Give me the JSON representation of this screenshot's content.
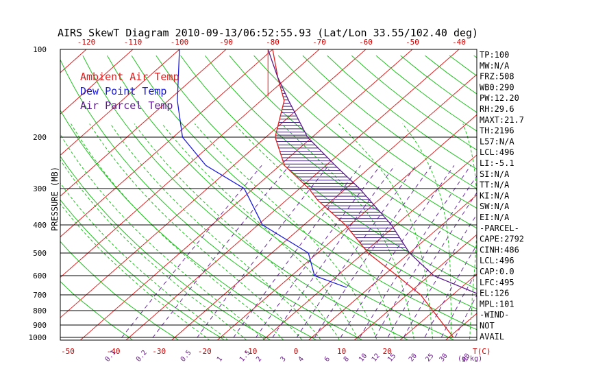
{
  "title": "AIRS SkewT Diagram 2010-09-13/06:52:55.93 (Lat/Lon 33.55/102.40 deg)",
  "legend": [
    {
      "label": "Ambient Air Temp",
      "color": "#e02020"
    },
    {
      "label": "Dew Point Temp",
      "color": "#1a1ad8"
    },
    {
      "label": "Air Parcel Temp",
      "color": "#5a1a8a"
    }
  ],
  "colors": {
    "isotherm": "#e02020",
    "dry_adiabat": "#20c020",
    "moist_adiabat": "#20c020",
    "mixing_ratio": "#6a2aa0",
    "isobar": "#000000",
    "hatch": "#3a1a7a"
  },
  "stats": [
    "TP:100",
    "MW:N/A",
    "FRZ:508",
    "WB0:290",
    "PW:12.20",
    "RH:29.6",
    "MAXT:21.7",
    "TH:2196",
    "L57:N/A",
    "LCL:496",
    "LI:-5.1",
    "SI:N/A",
    "TT:N/A",
    "KI:N/A",
    "SW:N/A",
    "EI:N/A",
    "-PARCEL-",
    "CAPE:2792",
    "CINH:486",
    "LCL:496",
    "CAP:0.0",
    "LFC:495",
    "EL:126",
    "MPL:101",
    "-WIND-",
    "NOT",
    "AVAIL"
  ],
  "chart_data": {
    "type": "line",
    "title": "AIRS SkewT Diagram 2010-09-13/06:52:55.93 (Lat/Lon 33.55/102.40 deg)",
    "ylabel": "PRESSURE (MB)",
    "xlabel": "T(C)",
    "pressure_ticks": [
      "100",
      "200",
      "300",
      "400",
      "500",
      "600",
      "700",
      "800",
      "900",
      "1000"
    ],
    "top_temp_ticks": [
      "-120",
      "-110",
      "-100",
      "-90",
      "-80",
      "-70",
      "-60",
      "-50",
      "-40"
    ],
    "bottom_temp_ticks": [
      "-50",
      "-40",
      "-30",
      "-20",
      "-10",
      "0",
      "10",
      "20"
    ],
    "bottom_temp_label": "T(C)",
    "mixing_ratio_labels": [
      "0.1",
      "0.2",
      "0.5",
      "1",
      "1.5",
      "2",
      "3",
      "4",
      "6",
      "8",
      "10",
      "12",
      "15",
      "20",
      "25",
      "30",
      "40"
    ],
    "mixing_ratio_unit": "(g/kg)",
    "series": [
      {
        "name": "Ambient Air Temp",
        "points": [
          {
            "p": 1000,
            "t": 31
          },
          {
            "p": 700,
            "t": 13
          },
          {
            "p": 600,
            "t": 3
          },
          {
            "p": 500,
            "t": -9
          },
          {
            "p": 400,
            "t": -21
          },
          {
            "p": 330,
            "t": -33
          },
          {
            "p": 300,
            "t": -38
          },
          {
            "p": 250,
            "t": -49
          },
          {
            "p": 200,
            "t": -58
          },
          {
            "p": 150,
            "t": -65
          },
          {
            "p": 125,
            "t": -72
          },
          {
            "p": 100,
            "t": -80
          }
        ]
      },
      {
        "name": "Dew Point Temp",
        "points": [
          {
            "p": 660,
            "t": -5
          },
          {
            "p": 600,
            "t": -15
          },
          {
            "p": 500,
            "t": -22
          },
          {
            "p": 400,
            "t": -39
          },
          {
            "p": 300,
            "t": -52
          },
          {
            "p": 250,
            "t": -66
          },
          {
            "p": 200,
            "t": -78
          },
          {
            "p": 150,
            "t": -88
          },
          {
            "p": 100,
            "t": -100
          }
        ]
      },
      {
        "name": "Air Parcel Temp",
        "points": [
          {
            "p": 700,
            "t": 26
          },
          {
            "p": 600,
            "t": 11
          },
          {
            "p": 500,
            "t": 0
          },
          {
            "p": 400,
            "t": -11
          },
          {
            "p": 300,
            "t": -27
          },
          {
            "p": 250,
            "t": -38
          },
          {
            "p": 200,
            "t": -51
          },
          {
            "p": 150,
            "t": -64
          },
          {
            "p": 125,
            "t": -72
          },
          {
            "p": 100,
            "t": -81
          }
        ]
      }
    ],
    "hatched_region": "CAPE area between parcel and ambient temperature, 126-495 mb",
    "p_range": [
      100,
      1050
    ],
    "skew_deg_per_log": 10
  }
}
